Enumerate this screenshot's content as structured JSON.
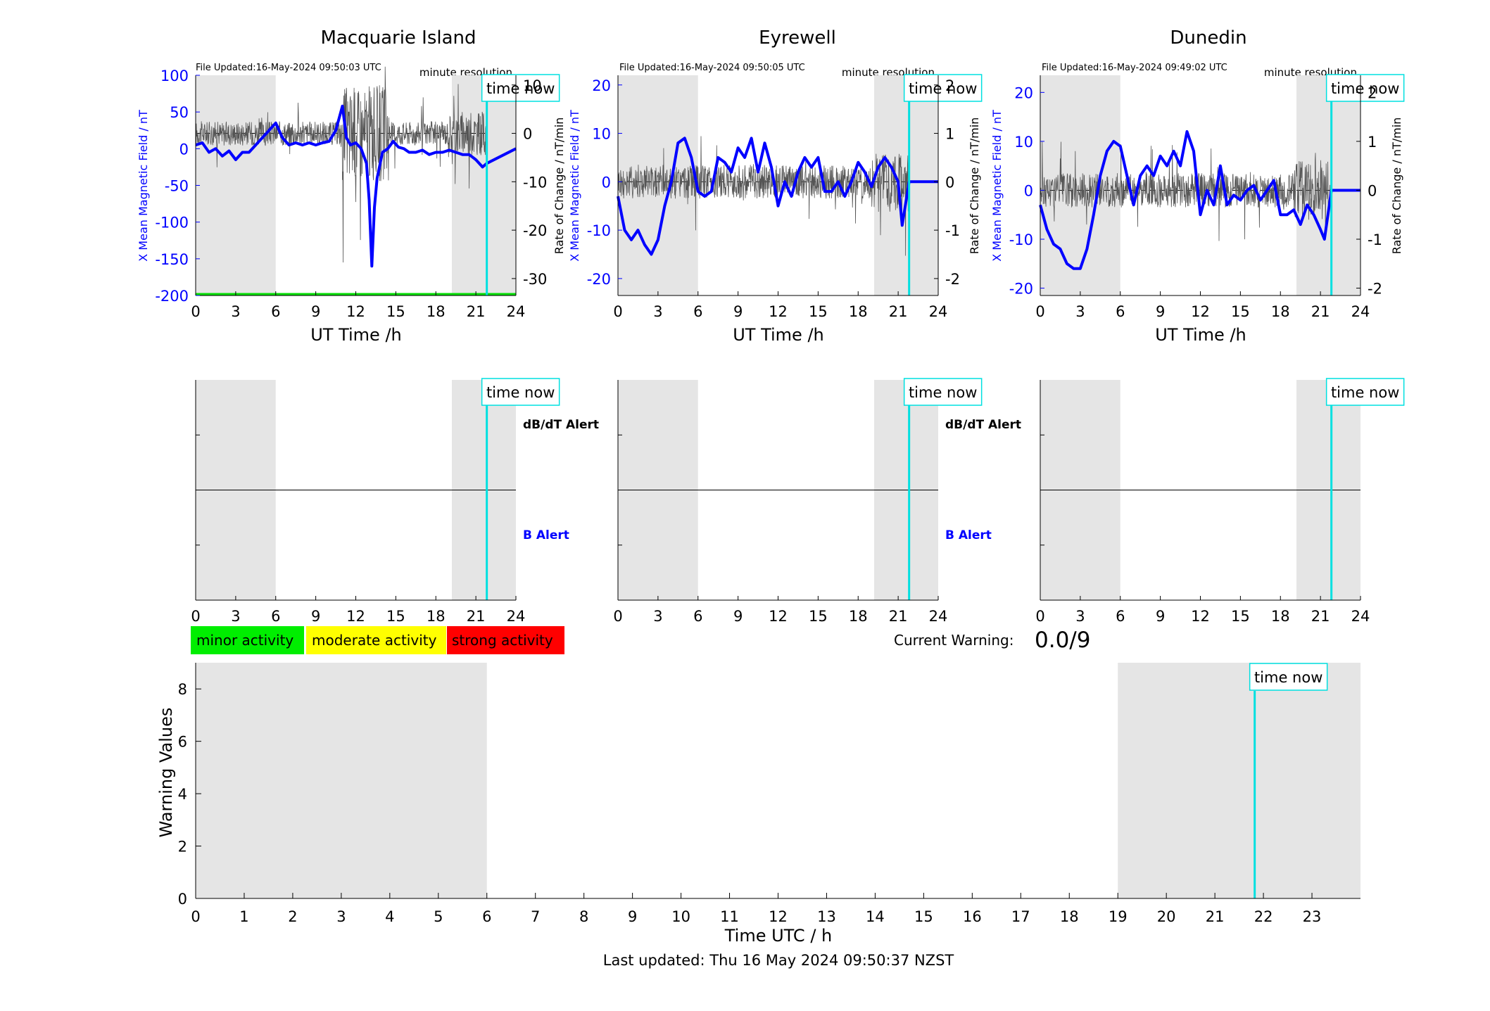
{
  "colors": {
    "x_field": "#0000ff",
    "rate": "#555555",
    "time_now": "#00e0e0",
    "night_shade": "#e5e5e5",
    "minor": "#00ee00",
    "moderate": "#ffff00",
    "strong": "#ff0000",
    "baseline_green": "#00dd00"
  },
  "labels": {
    "time_now": "time now",
    "minute_resolution": "minute resolution",
    "dbdt_alert": "dB/dT Alert",
    "b_alert": "B Alert",
    "ut_xlabel": "UT Time /h",
    "x_ylabel": "X Mean Magnetic Field / nT",
    "rate_ylabel": "Rate of Change / nT/min",
    "current_warning_label": "Current Warning:",
    "current_warning_value": "0.0/9",
    "warning_ylabel": "Warning Values",
    "warning_xlabel": "Time UTC / h",
    "last_updated": "Last updated: Thu 16 May 2024 09:50:37 NZST"
  },
  "legend": [
    {
      "label": "minor activity",
      "color": "#00ee00"
    },
    {
      "label": "moderate activity",
      "color": "#ffff00"
    },
    {
      "label": "strong activity",
      "color": "#ff0000"
    }
  ],
  "chart_data": [
    {
      "type": "line",
      "station": "Macquarie Island",
      "file_updated": "File Updated:16-May-2024 09:50:03 UTC",
      "xlim": [
        0,
        24
      ],
      "xticks": [
        0,
        3,
        6,
        9,
        12,
        15,
        18,
        21,
        24
      ],
      "ylim_left": [
        -200,
        100
      ],
      "yticks_left": [
        -200,
        -150,
        -100,
        -50,
        0,
        50,
        100
      ],
      "ylim_right": [
        -33.5,
        12
      ],
      "yticks_right": [
        -30,
        -20,
        -10,
        0,
        10
      ],
      "night_shading": [
        [
          0,
          6
        ],
        [
          19.2,
          24
        ]
      ],
      "time_now": 21.82,
      "baseline_green": -200,
      "series": [
        {
          "axis": "left",
          "x": [
            0,
            0.5,
            1,
            1.5,
            2,
            2.5,
            3,
            3.5,
            4,
            4.5,
            5,
            5.5,
            6,
            6.5,
            7,
            7.5,
            8,
            8.5,
            9,
            9.5,
            10,
            10.5,
            10.8,
            11,
            11.3,
            11.6,
            12,
            12.4,
            12.8,
            13,
            13.2,
            13.4,
            13.6,
            14,
            14.4,
            14.8,
            15.2,
            15.6,
            16,
            16.5,
            17,
            17.5,
            18,
            18.5,
            19,
            19.5,
            20,
            20.5,
            21,
            21.5,
            21.82,
            24
          ],
          "y": [
            5,
            8,
            -5,
            0,
            -10,
            -3,
            -15,
            -5,
            -5,
            5,
            15,
            25,
            35,
            15,
            5,
            8,
            5,
            8,
            5,
            8,
            10,
            25,
            45,
            58,
            15,
            5,
            8,
            0,
            -20,
            -70,
            -160,
            -80,
            -40,
            -5,
            0,
            10,
            2,
            0,
            -5,
            -5,
            -2,
            -8,
            -5,
            -5,
            -2,
            -5,
            -8,
            -8,
            -15,
            -25,
            -20,
            0
          ]
        }
      ]
    },
    {
      "type": "line",
      "station": "Eyrewell",
      "file_updated": "File Updated:16-May-2024 09:50:05 UTC",
      "xlim": [
        0,
        24
      ],
      "xticks": [
        0,
        3,
        6,
        9,
        12,
        15,
        18,
        21,
        24
      ],
      "ylim_left": [
        -23.5,
        22
      ],
      "yticks_left": [
        -20,
        -10,
        0,
        10,
        20
      ],
      "ylim_right": [
        -2.35,
        2.2
      ],
      "yticks_right": [
        -2,
        -1,
        0,
        1,
        2
      ],
      "night_shading": [
        [
          0,
          6
        ],
        [
          19.2,
          24
        ]
      ],
      "time_now": 21.82,
      "series": [
        {
          "axis": "left",
          "x": [
            0,
            0.5,
            1,
            1.5,
            2,
            2.5,
            3,
            3.5,
            4,
            4.5,
            5,
            5.5,
            6,
            6.5,
            7,
            7.5,
            8,
            8.5,
            9,
            9.5,
            10,
            10.5,
            11,
            11.5,
            12,
            12.5,
            13,
            13.5,
            14,
            14.5,
            15,
            15.5,
            16,
            16.5,
            17,
            17.5,
            18,
            18.5,
            19,
            19.5,
            20,
            20.5,
            21,
            21.3,
            21.82,
            24
          ],
          "y": [
            -3,
            -10,
            -12,
            -10,
            -13,
            -15,
            -12,
            -5,
            0,
            8,
            9,
            5,
            -2,
            -3,
            -2,
            5,
            4,
            2,
            7,
            5,
            9,
            2,
            8,
            3,
            -5,
            0,
            -3,
            2,
            5,
            3,
            5,
            -2,
            -2,
            0,
            -3,
            0,
            4,
            2,
            -1,
            3,
            5,
            3,
            0,
            -9,
            0,
            0
          ]
        }
      ]
    },
    {
      "type": "line",
      "station": "Dunedin",
      "file_updated": "File Updated:16-May-2024 09:49:02 UTC",
      "xlim": [
        0,
        24
      ],
      "xticks": [
        0,
        3,
        6,
        9,
        12,
        15,
        18,
        21,
        24
      ],
      "ylim_left": [
        -21.5,
        23.5
      ],
      "yticks_left": [
        -20,
        -10,
        0,
        10,
        20
      ],
      "ylim_right": [
        -2.15,
        2.35
      ],
      "yticks_right": [
        -2,
        -1,
        0,
        1,
        2
      ],
      "night_shading": [
        [
          0,
          6
        ],
        [
          19.2,
          24
        ]
      ],
      "time_now": 21.82,
      "series": [
        {
          "axis": "left",
          "x": [
            0,
            0.5,
            1,
            1.5,
            2,
            2.5,
            3,
            3.5,
            4,
            4.5,
            5,
            5.5,
            6,
            6.5,
            7,
            7.5,
            8,
            8.5,
            9,
            9.5,
            10,
            10.5,
            11,
            11.5,
            12,
            12.5,
            13,
            13.5,
            14,
            14.5,
            15,
            15.5,
            16,
            16.5,
            17,
            17.5,
            18,
            18.5,
            19,
            19.5,
            20,
            20.5,
            21,
            21.3,
            21.82,
            24
          ],
          "y": [
            -3,
            -8,
            -11,
            -12,
            -15,
            -16,
            -16,
            -12,
            -5,
            3,
            8,
            10,
            9,
            3,
            -3,
            3,
            5,
            3,
            7,
            5,
            8,
            5,
            12,
            8,
            -5,
            0,
            -3,
            5,
            -3,
            -1,
            -2,
            0,
            1,
            -2,
            0,
            2,
            -5,
            -5,
            -4,
            -7,
            -3,
            -5,
            -8,
            -10,
            0,
            0
          ]
        }
      ]
    },
    {
      "type": "line",
      "panel": "alerts",
      "station": "Macquarie Island",
      "xlim": [
        0,
        24
      ],
      "xticks": [
        0,
        3,
        6,
        9,
        12,
        15,
        18,
        21,
        24
      ],
      "night_shading": [
        [
          0,
          6
        ],
        [
          19.2,
          24
        ]
      ],
      "time_now": 21.82
    },
    {
      "type": "line",
      "panel": "alerts",
      "station": "Eyrewell",
      "xlim": [
        0,
        24
      ],
      "xticks": [
        0,
        3,
        6,
        9,
        12,
        15,
        18,
        21,
        24
      ],
      "night_shading": [
        [
          0,
          6
        ],
        [
          19.2,
          24
        ]
      ],
      "time_now": 21.82
    },
    {
      "type": "line",
      "panel": "alerts",
      "station": "Dunedin",
      "xlim": [
        0,
        24
      ],
      "xticks": [
        0,
        3,
        6,
        9,
        12,
        15,
        18,
        21,
        24
      ],
      "night_shading": [
        [
          0,
          6
        ],
        [
          19.2,
          24
        ]
      ],
      "time_now": 21.82
    },
    {
      "type": "bar",
      "panel": "warning",
      "xlim": [
        0,
        24
      ],
      "xticks": [
        0,
        1,
        2,
        3,
        4,
        5,
        6,
        7,
        8,
        9,
        10,
        11,
        12,
        13,
        14,
        15,
        16,
        17,
        18,
        19,
        20,
        21,
        22,
        23
      ],
      "ylim": [
        0,
        9
      ],
      "yticks": [
        0,
        2,
        4,
        6,
        8
      ],
      "night_shading": [
        [
          0,
          6
        ],
        [
          19,
          24
        ]
      ],
      "time_now": 21.82
    }
  ]
}
